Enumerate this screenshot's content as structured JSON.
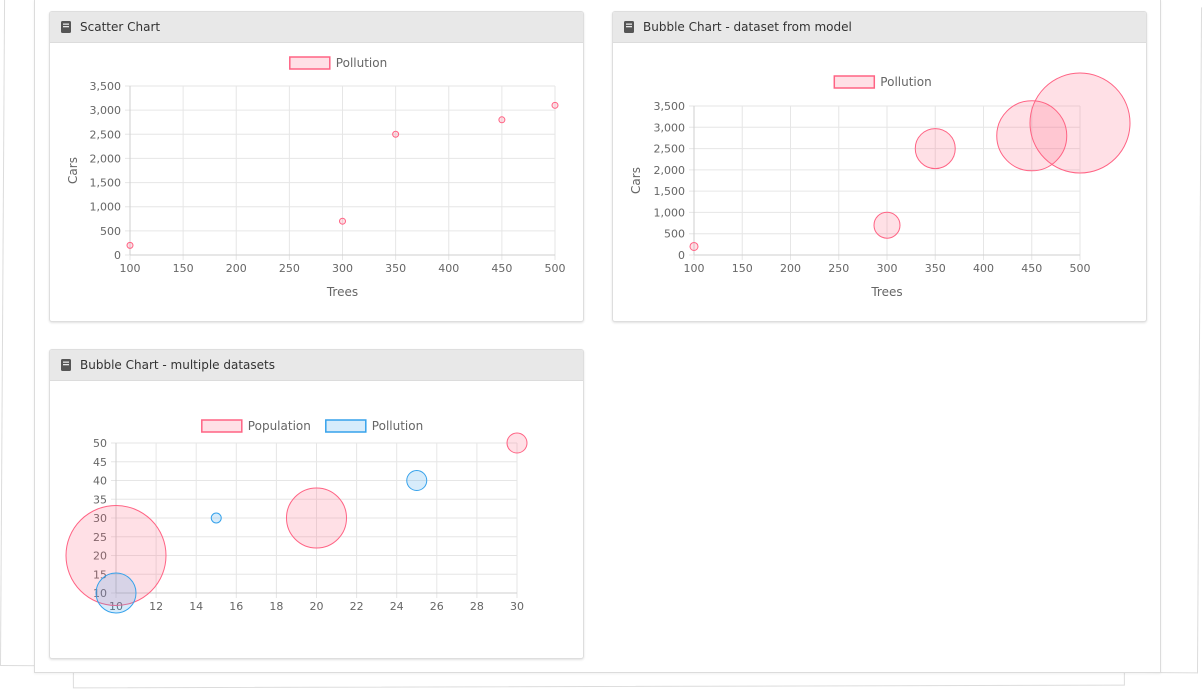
{
  "colors": {
    "pink_fill": "rgba(255,99,132,0.2)",
    "pink_stroke": "#ff6384",
    "blue_fill": "rgba(54,162,235,0.2)",
    "blue_stroke": "#36a2eb",
    "grid": "#e6e6e6",
    "text": "#666666"
  },
  "panels": {
    "scatter": {
      "title": "Scatter Chart",
      "icon": "book-icon"
    },
    "bubble_model": {
      "title": "Bubble Chart - dataset from model",
      "icon": "book-icon"
    },
    "bubble_multi": {
      "title": "Bubble Chart - multiple datasets",
      "icon": "book-icon"
    }
  },
  "chart_data": [
    {
      "id": "scatter",
      "type": "scatter",
      "title": "Scatter Chart",
      "xlabel": "Trees",
      "ylabel": "Cars",
      "xlim": [
        100,
        500
      ],
      "ylim": [
        0,
        3500
      ],
      "xticks": [
        100,
        150,
        200,
        250,
        300,
        350,
        400,
        450,
        500
      ],
      "yticks": [
        0,
        500,
        1000,
        1500,
        2000,
        2500,
        3000,
        3500
      ],
      "ytick_labels": [
        "0",
        "500",
        "1,000",
        "1,500",
        "2,000",
        "2,500",
        "3,000",
        "3,500"
      ],
      "series": [
        {
          "name": "Pollution",
          "color": "pink",
          "points": [
            {
              "x": 100,
              "y": 200
            },
            {
              "x": 300,
              "y": 700
            },
            {
              "x": 350,
              "y": 2500
            },
            {
              "x": 450,
              "y": 2800
            },
            {
              "x": 500,
              "y": 3100
            }
          ]
        }
      ]
    },
    {
      "id": "bubble_model",
      "type": "bubble",
      "title": "Bubble Chart - dataset from model",
      "xlabel": "Trees",
      "ylabel": "Cars",
      "xlim": [
        100,
        500
      ],
      "ylim": [
        0,
        3500
      ],
      "xticks": [
        100,
        150,
        200,
        250,
        300,
        350,
        400,
        450,
        500
      ],
      "yticks": [
        0,
        500,
        1000,
        1500,
        2000,
        2500,
        3000,
        3500
      ],
      "ytick_labels": [
        "0",
        "500",
        "1,000",
        "1,500",
        "2,000",
        "2,500",
        "3,000",
        "3,500"
      ],
      "series": [
        {
          "name": "Pollution",
          "color": "pink",
          "points": [
            {
              "x": 100,
              "y": 200,
              "r": 4
            },
            {
              "x": 300,
              "y": 700,
              "r": 13
            },
            {
              "x": 350,
              "y": 2500,
              "r": 20
            },
            {
              "x": 450,
              "y": 2800,
              "r": 35
            },
            {
              "x": 500,
              "y": 3100,
              "r": 50
            }
          ]
        }
      ]
    },
    {
      "id": "bubble_multi",
      "type": "bubble",
      "title": "Bubble Chart - multiple datasets",
      "xlabel": "",
      "ylabel": "",
      "xlim": [
        10,
        30
      ],
      "ylim": [
        10,
        50
      ],
      "xticks": [
        10,
        12,
        14,
        16,
        18,
        20,
        22,
        24,
        26,
        28,
        30
      ],
      "yticks": [
        10,
        15,
        20,
        25,
        30,
        35,
        40,
        45,
        50
      ],
      "ytick_labels": [
        "10",
        "15",
        "20",
        "25",
        "30",
        "35",
        "40",
        "45",
        "50"
      ],
      "series": [
        {
          "name": "Population",
          "color": "pink",
          "points": [
            {
              "x": 10,
              "y": 20,
              "r": 50
            },
            {
              "x": 20,
              "y": 30,
              "r": 30
            },
            {
              "x": 30,
              "y": 50,
              "r": 10
            }
          ]
        },
        {
          "name": "Pollution",
          "color": "blue",
          "points": [
            {
              "x": 10,
              "y": 10,
              "r": 20
            },
            {
              "x": 15,
              "y": 30,
              "r": 5
            },
            {
              "x": 25,
              "y": 40,
              "r": 10
            }
          ]
        }
      ]
    }
  ]
}
